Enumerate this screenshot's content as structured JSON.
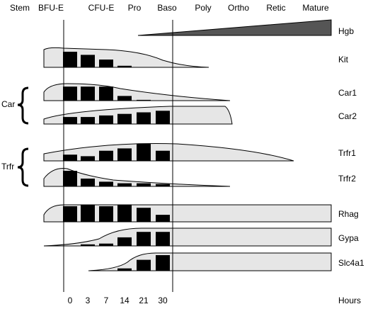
{
  "stages": [
    "Stem",
    "BFU-E",
    "CFU-E",
    "Pro",
    "Baso",
    "Poly",
    "Ortho",
    "Retic",
    "Mature"
  ],
  "hemoglobin_label": "Hgb",
  "groups": [
    "Car",
    "Trfr"
  ],
  "hours": [
    "0",
    "3",
    "7",
    "14",
    "21",
    "30"
  ],
  "hours_label": "Hours",
  "genes": [
    {
      "name": "Kit",
      "values": [
        10,
        8,
        5,
        1,
        0,
        0
      ]
    },
    {
      "name": "Car1",
      "values": [
        9,
        9,
        9,
        3,
        0.5,
        0
      ]
    },
    {
      "name": "Car2",
      "values": [
        4.5,
        4.5,
        5.5,
        6.5,
        7.5,
        8.5
      ]
    },
    {
      "name": "Trfr1",
      "values": [
        4,
        3,
        6.5,
        8,
        11,
        6.5
      ]
    },
    {
      "name": "Trfr2",
      "values": [
        10,
        5,
        3,
        2,
        2,
        1.5
      ]
    },
    {
      "name": "Rhag",
      "values": [
        10,
        11,
        10,
        11,
        9,
        4.5
      ]
    },
    {
      "name": "Gypa",
      "values": [
        0,
        1,
        1.5,
        5.5,
        9,
        9
      ]
    },
    {
      "name": "Slc4a1",
      "values": [
        0,
        0,
        0,
        1.5,
        7,
        10
      ]
    }
  ]
}
